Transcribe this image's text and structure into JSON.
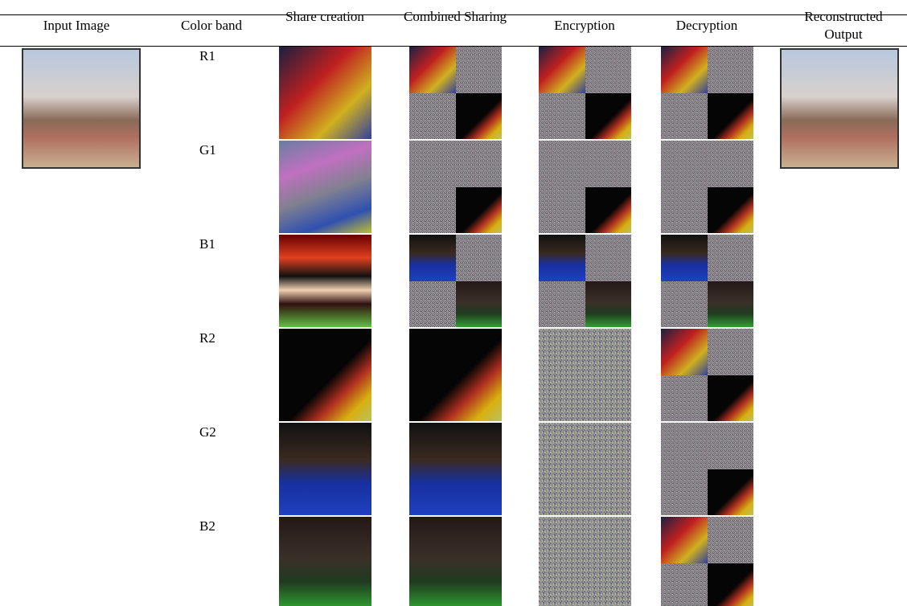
{
  "table": {
    "headers": [
      "Input Image",
      "Color band",
      "Share creation",
      "Combined Sharing",
      "Encryption",
      "Decryption",
      "Reconstructed Output"
    ],
    "rows": [
      "R1",
      "G1",
      "B1",
      "R2",
      "G2",
      "B2"
    ]
  }
}
